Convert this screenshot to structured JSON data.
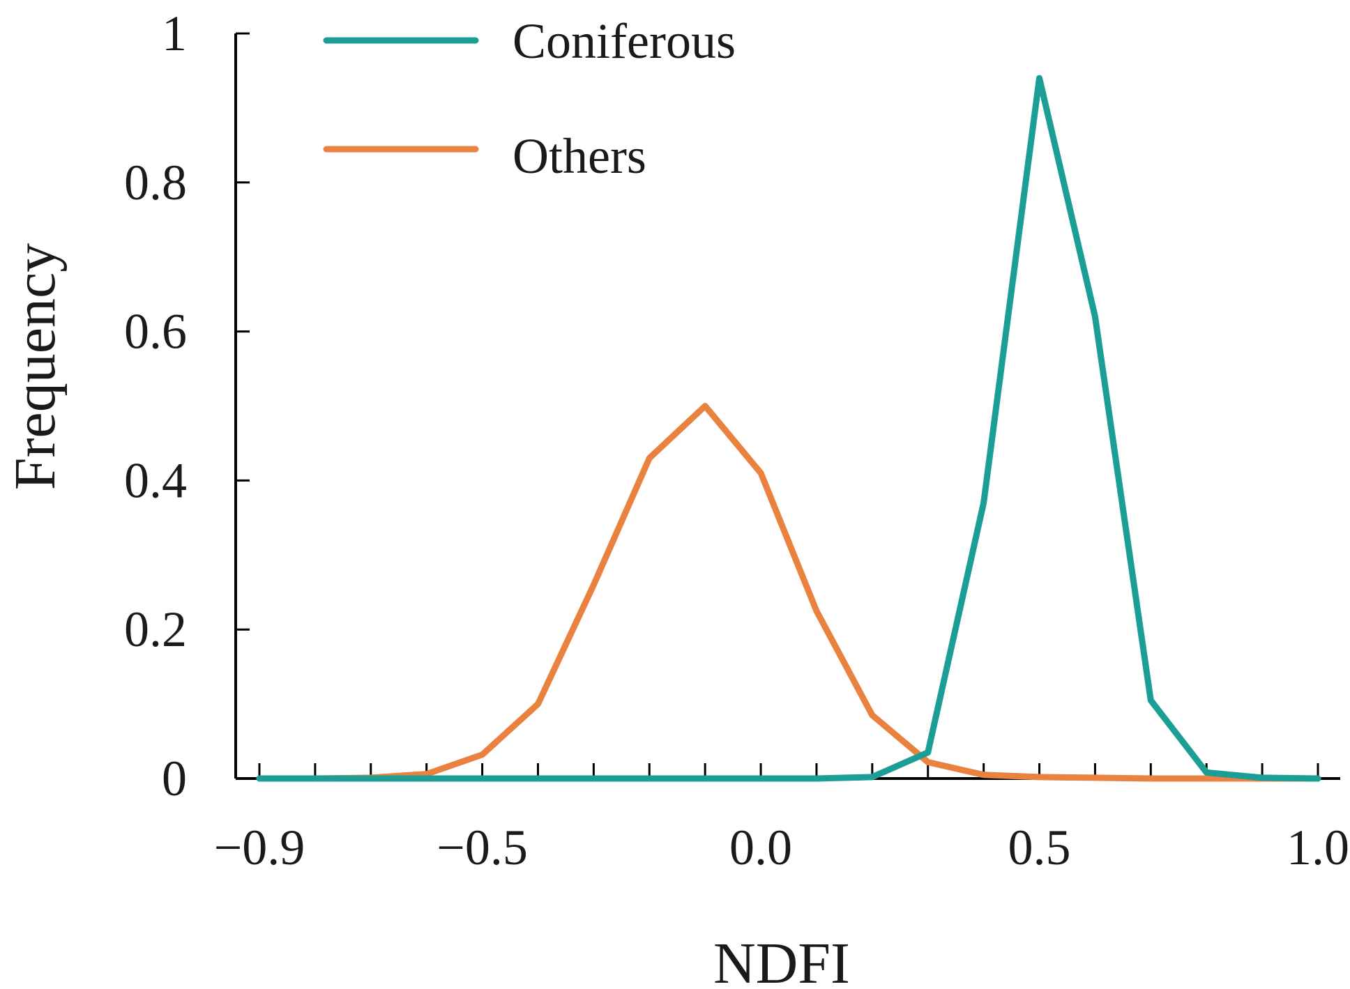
{
  "chart_data": {
    "type": "line",
    "title": "",
    "xlabel": "NDFI",
    "ylabel": "Frequency",
    "xlim": [
      -0.9,
      1.0
    ],
    "ylim": [
      0,
      1
    ],
    "x_ticks": [
      -0.9,
      -0.5,
      0.0,
      0.5,
      1.0
    ],
    "x_tick_labels": [
      "−0.9",
      "−0.5",
      "0.0",
      "0.5",
      "1.0"
    ],
    "y_ticks": [
      0,
      0.2,
      0.4,
      0.6,
      0.8,
      1
    ],
    "y_tick_labels": [
      "0",
      "0.2",
      "0.4",
      "0.6",
      "0.8",
      "1"
    ],
    "x_minor_step": 0.1,
    "grid": false,
    "legend_position": "top-left",
    "series": [
      {
        "name": "Coniferous",
        "color": "#1a9e96",
        "x": [
          -0.9,
          -0.8,
          -0.7,
          -0.6,
          -0.5,
          -0.4,
          -0.3,
          -0.2,
          -0.1,
          0.0,
          0.1,
          0.2,
          0.3,
          0.4,
          0.5,
          0.6,
          0.7,
          0.8,
          0.9,
          1.0
        ],
        "y": [
          0,
          0,
          0,
          0,
          0,
          0,
          0,
          0,
          0,
          0,
          0,
          0.002,
          0.035,
          0.37,
          0.94,
          0.62,
          0.105,
          0.008,
          0.001,
          0
        ]
      },
      {
        "name": "Others",
        "color": "#e9823e",
        "x": [
          -0.9,
          -0.8,
          -0.7,
          -0.6,
          -0.5,
          -0.4,
          -0.3,
          -0.2,
          -0.1,
          0.0,
          0.1,
          0.2,
          0.3,
          0.4,
          0.5,
          0.6,
          0.7,
          0.8,
          0.9,
          1.0
        ],
        "y": [
          0,
          0,
          0.001,
          0.006,
          0.032,
          0.1,
          0.26,
          0.43,
          0.5,
          0.41,
          0.225,
          0.085,
          0.022,
          0.005,
          0.002,
          0.001,
          0,
          0,
          0,
          0
        ]
      }
    ]
  }
}
